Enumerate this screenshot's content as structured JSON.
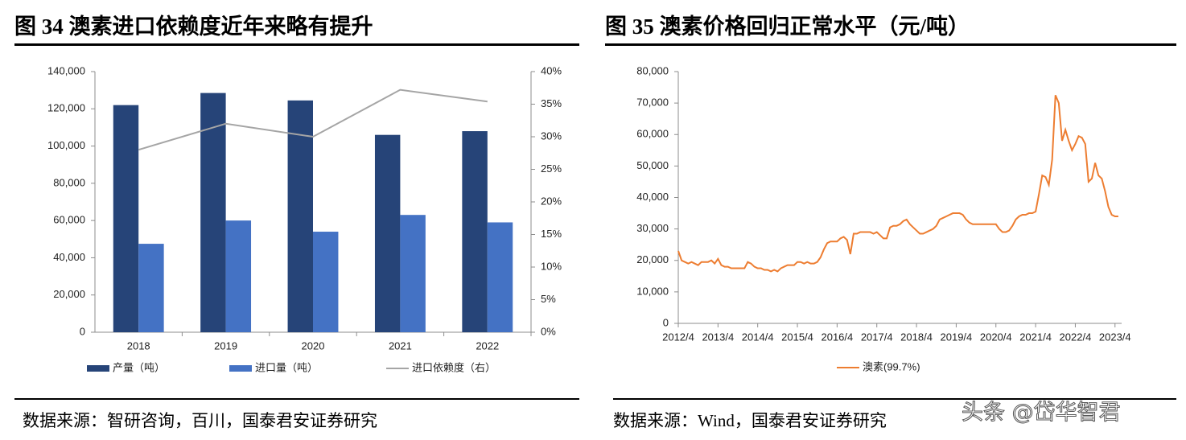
{
  "chart_data": [
    {
      "type": "bar",
      "title": "图 34 澳素进口依赖度近年来略有提升",
      "source": "数据来源：智研咨询，百川，国泰君安证券研究",
      "categories": [
        "2018",
        "2019",
        "2020",
        "2021",
        "2022"
      ],
      "series": [
        {
          "name": "产量（吨）",
          "color": "#264478",
          "values": [
            122000,
            128500,
            124500,
            106000,
            108000
          ]
        },
        {
          "name": "进口量（吨）",
          "color": "#4472c4",
          "values": [
            47500,
            60000,
            54000,
            63000,
            59000
          ]
        },
        {
          "name": "进口依赖度（右）",
          "type": "line",
          "axis": "y2",
          "color": "#a5a5a5",
          "values": [
            28,
            32,
            30,
            37.2,
            35.4
          ]
        }
      ],
      "ylim": [
        0,
        140000
      ],
      "yticks": [
        0,
        {
          "value": 20000,
          "label": "20,000"
        },
        {
          "value": 40000,
          "label": "40,000"
        },
        {
          "value": 60000,
          "label": "60,000"
        },
        {
          "value": 80000,
          "label": "80,000"
        },
        {
          "value": 100000,
          "label": "100,000"
        },
        {
          "value": 120000,
          "label": "120,000"
        },
        {
          "value": 140000,
          "label": "140,000"
        }
      ],
      "y2lim": [
        0,
        40
      ],
      "y2ticks": [
        {
          "value": 0,
          "label": "0%"
        },
        {
          "value": 5,
          "label": "5%"
        },
        {
          "value": 10,
          "label": "10%"
        },
        {
          "value": 15,
          "label": "15%"
        },
        {
          "value": 20,
          "label": "20%"
        },
        {
          "value": 25,
          "label": "25%"
        },
        {
          "value": 30,
          "label": "30%"
        },
        {
          "value": 35,
          "label": "35%"
        },
        {
          "value": 40,
          "label": "40%"
        }
      ],
      "grid": false,
      "legend": "bottom"
    },
    {
      "type": "line",
      "title": "图 35 澳素价格回归正常水平（元/吨）",
      "source": "数据来源：Wind，国泰君安证券研究",
      "x": [
        "2012/4",
        "2012/5",
        "2012/6",
        "2012/7",
        "2012/8",
        "2012/9",
        "2012/10",
        "2012/11",
        "2012/12",
        "2013/1",
        "2013/2",
        "2013/3",
        "2013/4",
        "2013/5",
        "2013/6",
        "2013/7",
        "2013/8",
        "2013/9",
        "2013/10",
        "2013/11",
        "2013/12",
        "2014/1",
        "2014/2",
        "2014/3",
        "2014/4",
        "2014/5",
        "2014/6",
        "2014/7",
        "2014/8",
        "2014/9",
        "2014/10",
        "2014/11",
        "2014/12",
        "2015/1",
        "2015/2",
        "2015/3",
        "2015/4",
        "2015/5",
        "2015/6",
        "2015/7",
        "2015/8",
        "2015/9",
        "2015/10",
        "2015/11",
        "2015/12",
        "2016/1",
        "2016/2",
        "2016/3",
        "2016/4",
        "2016/5",
        "2016/6",
        "2016/7",
        "2016/8",
        "2016/9",
        "2016/10",
        "2016/11",
        "2016/12",
        "2017/1",
        "2017/2",
        "2017/3",
        "2017/4",
        "2017/5",
        "2017/6",
        "2017/7",
        "2017/8",
        "2017/9",
        "2017/10",
        "2017/11",
        "2017/12",
        "2018/1",
        "2018/2",
        "2018/3",
        "2018/4",
        "2018/5",
        "2018/6",
        "2018/7",
        "2018/8",
        "2018/9",
        "2018/10",
        "2018/11",
        "2018/12",
        "2019/1",
        "2019/2",
        "2019/3",
        "2019/4",
        "2019/5",
        "2019/6",
        "2019/7",
        "2019/8",
        "2019/9",
        "2019/10",
        "2019/11",
        "2019/12",
        "2020/1",
        "2020/2",
        "2020/3",
        "2020/4",
        "2020/5",
        "2020/6",
        "2020/7",
        "2020/8",
        "2020/9",
        "2020/10",
        "2020/11",
        "2020/12",
        "2021/1",
        "2021/2",
        "2021/3",
        "2021/4",
        "2021/5",
        "2021/6",
        "2021/7",
        "2021/8",
        "2021/9",
        "2021/10",
        "2021/11",
        "2021/12",
        "2022/1",
        "2022/2",
        "2022/3",
        "2022/4",
        "2022/5",
        "2022/6",
        "2022/7",
        "2022/8",
        "2022/9",
        "2022/10",
        "2022/11",
        "2022/12",
        "2023/1",
        "2023/2",
        "2023/3",
        "2023/4",
        "2023/5"
      ],
      "series": [
        {
          "name": "澳素(99.7%)",
          "color": "#ed7d31",
          "values": [
            23000,
            20000,
            19500,
            19000,
            19500,
            19000,
            18500,
            19500,
            19500,
            19500,
            20000,
            19000,
            20500,
            18500,
            18000,
            18000,
            17500,
            17500,
            17500,
            17500,
            17500,
            19500,
            19000,
            18000,
            17500,
            17500,
            17000,
            17000,
            16500,
            17000,
            16500,
            17500,
            18000,
            18500,
            18500,
            18500,
            19500,
            19500,
            19000,
            19500,
            19000,
            19000,
            19500,
            21000,
            23500,
            25500,
            26000,
            26000,
            26000,
            27000,
            27500,
            26500,
            22000,
            28500,
            28500,
            29000,
            29000,
            29000,
            29000,
            28500,
            29000,
            28000,
            27000,
            27000,
            30500,
            31000,
            31000,
            31500,
            32500,
            33000,
            31500,
            30500,
            29500,
            28500,
            28500,
            29000,
            29500,
            30000,
            31000,
            33000,
            33500,
            34000,
            34500,
            35000,
            35000,
            35000,
            34500,
            33000,
            32000,
            31500,
            31500,
            31500,
            31500,
            31500,
            31500,
            31500,
            31500,
            30000,
            29000,
            29000,
            29500,
            31000,
            33000,
            34000,
            34500,
            34500,
            35000,
            35000,
            35500,
            41000,
            47000,
            46500,
            44000,
            52000,
            72500,
            70000,
            58000,
            61500,
            58000,
            55000,
            57000,
            59500,
            59000,
            57000,
            45000,
            46000,
            51000,
            47000,
            46000,
            42000,
            37000,
            34500,
            34000,
            34000
          ]
        }
      ],
      "xticks": [
        "2012/4",
        "2013/4",
        "2014/4",
        "2015/4",
        "2016/4",
        "2017/4",
        "2018/4",
        "2019/4",
        "2020/4",
        "2021/4",
        "2022/4",
        "2023/4"
      ],
      "ylim": [
        0,
        80000
      ],
      "yticks": [
        0,
        {
          "value": 10000,
          "label": "10,000"
        },
        {
          "value": 20000,
          "label": "20,000"
        },
        {
          "value": 30000,
          "label": "30,000"
        },
        {
          "value": 40000,
          "label": "40,000"
        },
        {
          "value": 50000,
          "label": "50,000"
        },
        {
          "value": 60000,
          "label": "60,000"
        },
        {
          "value": 70000,
          "label": "70,000"
        },
        {
          "value": 80000,
          "label": "80,000"
        }
      ],
      "grid": false,
      "legend": "bottom"
    }
  ],
  "watermark": "头条 @岱华智君"
}
